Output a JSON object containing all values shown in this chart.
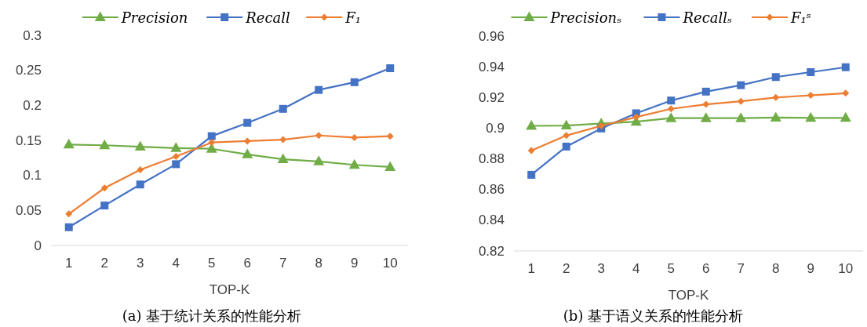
{
  "chart_data": [
    {
      "type": "line",
      "title": "(a) 基于统计关系的性能分析",
      "xlabel": "TOP-K",
      "categories": [
        "1",
        "2",
        "3",
        "4",
        "5",
        "6",
        "7",
        "8",
        "9",
        "10"
      ],
      "ylim": [
        0,
        0.3
      ],
      "yticks": [
        0,
        0.05,
        0.1,
        0.15,
        0.2,
        0.25,
        0.3
      ],
      "grid": false,
      "legend": "top",
      "series": [
        {
          "name": "Precision",
          "color": "#70ad47",
          "marker": "triangle",
          "values": [
            0.144,
            0.143,
            0.141,
            0.139,
            0.138,
            0.13,
            0.123,
            0.12,
            0.115,
            0.112
          ]
        },
        {
          "name": "Recall",
          "color": "#4472c4",
          "marker": "square",
          "values": [
            0.026,
            0.057,
            0.087,
            0.116,
            0.156,
            0.175,
            0.195,
            0.222,
            0.233,
            0.253
          ]
        },
        {
          "name": "F₁",
          "color": "#ed7d31",
          "marker": "diamond",
          "values": [
            0.045,
            0.082,
            0.108,
            0.127,
            0.147,
            0.149,
            0.151,
            0.157,
            0.154,
            0.156
          ]
        }
      ]
    },
    {
      "type": "line",
      "title": "(b) 基于语义关系的性能分析",
      "xlabel": "TOP-K",
      "categories": [
        "1",
        "2",
        "3",
        "4",
        "5",
        "6",
        "7",
        "8",
        "9",
        "10"
      ],
      "ylim": [
        0.82,
        0.96
      ],
      "yticks": [
        0.82,
        0.84,
        0.86,
        0.88,
        0.9,
        0.92,
        0.94,
        0.96
      ],
      "grid": false,
      "legend": "top",
      "series": [
        {
          "name": "Precisionₛ",
          "color": "#70ad47",
          "marker": "triangle",
          "values": [
            0.9015,
            0.9017,
            0.903,
            0.9042,
            0.9065,
            0.9065,
            0.9065,
            0.9069,
            0.9067,
            0.9067
          ]
        },
        {
          "name": "Recallₛ",
          "color": "#4472c4",
          "marker": "square",
          "values": [
            0.8696,
            0.888,
            0.8998,
            0.9097,
            0.918,
            0.9238,
            0.928,
            0.9333,
            0.9365,
            0.9397
          ]
        },
        {
          "name": "F₁ˢ",
          "color": "#ed7d31",
          "marker": "diamond",
          "values": [
            0.8854,
            0.8952,
            0.9015,
            0.9072,
            0.9126,
            0.9155,
            0.9175,
            0.92,
            0.9214,
            0.9228
          ]
        }
      ]
    }
  ]
}
